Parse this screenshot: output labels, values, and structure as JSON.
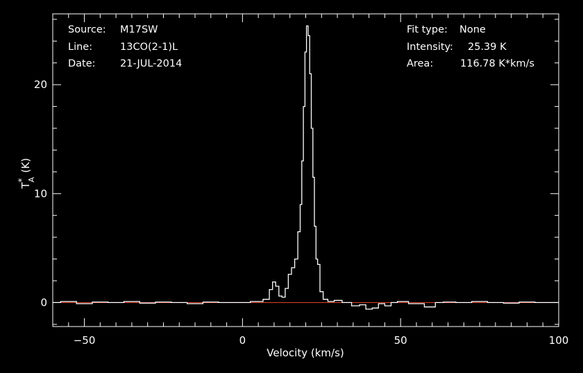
{
  "header": {
    "left": [
      {
        "key": "Source:",
        "value": "M17SW"
      },
      {
        "key": "Line:",
        "value": "13CO(2-1)L"
      },
      {
        "key": "Date:",
        "value": "21-JUL-2014"
      }
    ],
    "right": [
      {
        "key": "Fit type:",
        "value": "None"
      },
      {
        "key": "Intensity:",
        "value": "25.39 K"
      },
      {
        "key": "Area:",
        "value": "116.78 K*km/s"
      }
    ]
  },
  "colors": {
    "background": "#000000",
    "axes": "#ffffff",
    "spectrum": "#ffffff",
    "baseline": "#d43a2a"
  },
  "chart_data": {
    "type": "line",
    "title": "",
    "xlabel": "Velocity (km/s)",
    "ylabel": "T_A* (K)",
    "ylabel_parts": {
      "main": "T",
      "sub": "A",
      "sup": "*",
      "unit": "(K)"
    },
    "xlim": [
      -60,
      100
    ],
    "ylim": [
      -2.2,
      26.5
    ],
    "xticks": [
      -50,
      0,
      50,
      100
    ],
    "yticks": [
      0,
      10,
      20
    ],
    "grid": false,
    "baseline_y": 0,
    "series": [
      {
        "x": [
          -60,
          -55,
          -50,
          -45,
          -40,
          -35,
          -30,
          -25,
          -20,
          -15,
          -10,
          -5,
          0,
          5,
          8,
          9,
          10,
          11,
          12,
          13,
          14,
          15,
          16,
          17,
          18,
          18.5,
          19,
          19.5,
          20,
          20.5,
          21,
          21.5,
          22,
          22.5,
          23,
          23.5,
          24,
          25,
          26,
          28,
          30,
          33,
          36,
          38,
          40,
          42,
          44,
          46,
          48,
          50,
          55,
          60,
          62,
          65,
          70,
          75,
          80,
          85,
          90,
          95,
          100
        ],
        "y": [
          0.0,
          0.1,
          -0.1,
          0.05,
          0.0,
          0.1,
          -0.05,
          0.05,
          0.0,
          -0.1,
          0.05,
          0.0,
          0.0,
          0.1,
          0.3,
          1.2,
          1.9,
          1.5,
          0.6,
          0.5,
          1.3,
          2.6,
          3.2,
          4.0,
          6.5,
          9.0,
          13.0,
          18.0,
          23.0,
          25.39,
          24.5,
          21.0,
          16.0,
          11.5,
          7.0,
          4.0,
          3.5,
          1.0,
          0.3,
          0.1,
          0.2,
          0.0,
          -0.3,
          -0.2,
          -0.6,
          -0.5,
          -0.1,
          -0.3,
          0.0,
          0.1,
          -0.1,
          -0.4,
          0.0,
          0.05,
          0.0,
          0.1,
          0.0,
          -0.05,
          0.05,
          0.0,
          0.0
        ]
      }
    ]
  }
}
